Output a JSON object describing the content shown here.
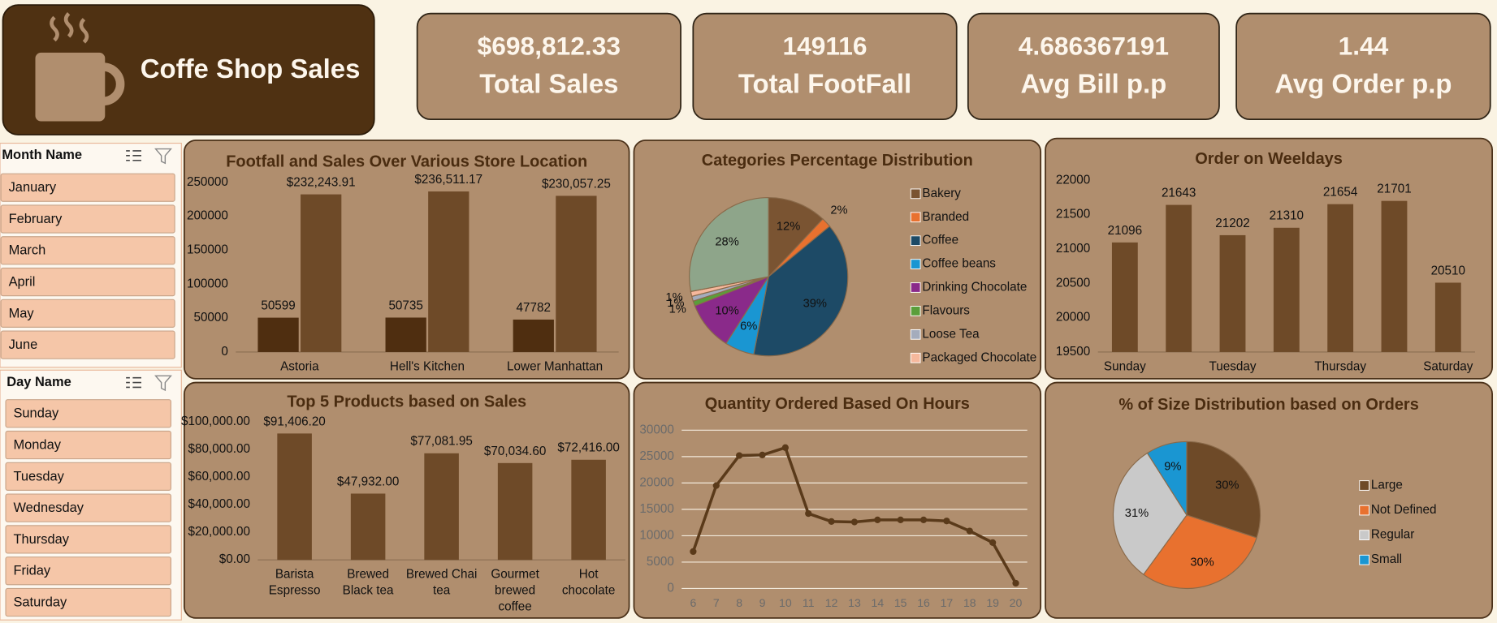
{
  "header": {
    "title": "Coffe Shop Sales"
  },
  "kpis": [
    {
      "value": "$698,812.33",
      "label": "Total Sales"
    },
    {
      "value": "149116",
      "label": "Total FootFall"
    },
    {
      "value": "4.686367191",
      "label": "Avg Bill p.p"
    },
    {
      "value": "1.44",
      "label": "Avg Order p.p"
    }
  ],
  "slicers": [
    {
      "title": "Month Name",
      "items": [
        "January",
        "February",
        "March",
        "April",
        "May",
        "June"
      ]
    },
    {
      "title": "Day Name",
      "items": [
        "Sunday",
        "Monday",
        "Tuesday",
        "Wednesday",
        "Thursday",
        "Friday",
        "Saturday"
      ]
    }
  ],
  "chart_data": [
    {
      "type": "bar",
      "title": "Footfall and Sales Over Various Store Location",
      "categories": [
        "Astoria",
        "Hell's Kitchen",
        "Lower Manhattan"
      ],
      "series": [
        {
          "color": "#4f2e10",
          "values": [
            50599,
            50735,
            47782
          ]
        },
        {
          "color": "#6e4a28",
          "values": [
            232243.91,
            236511.17,
            230057.25
          ],
          "value_labels": [
            "$232,243.91",
            "$236,511.17",
            "$230,057.25"
          ]
        }
      ],
      "ylim": [
        0,
        250000
      ],
      "yticks": [
        0,
        50000,
        100000,
        150000,
        200000,
        250000
      ]
    },
    {
      "type": "pie",
      "title": "Categories Percentage Distribution",
      "categories": [
        "Bakery",
        "Branded",
        "Coffee",
        "Coffee beans",
        "Drinking Chocolate",
        "Flavours",
        "Loose Tea",
        "Packaged Chocolate",
        null
      ],
      "values": [
        12,
        2,
        39,
        6,
        10,
        1,
        1,
        1,
        28
      ],
      "value_labels": [
        "12%",
        "2%",
        "39%",
        "6%",
        "10%",
        "1%",
        "1%",
        "1%",
        "28%"
      ],
      "colors": [
        "#7a5432",
        "#e8712f",
        "#1d4a66",
        "#1a96d2",
        "#8a2a8a",
        "#5a9e3a",
        "#a4acbc",
        "#f6b89c",
        "#8ea58a"
      ],
      "legend": "right"
    },
    {
      "type": "bar",
      "title": "Order on Weeldays",
      "categories": [
        "Sunday",
        null,
        "Tuesday",
        null,
        "Thursday",
        null,
        "Saturday"
      ],
      "values": [
        21096,
        21643,
        21202,
        21310,
        21654,
        21701,
        20510
      ],
      "color": "#6e4a28",
      "ylim": [
        19500,
        22000
      ],
      "yticks": [
        19500,
        20000,
        20500,
        21000,
        21500,
        22000
      ]
    },
    {
      "type": "bar",
      "title": "Top 5 Products based on Sales",
      "categories": [
        "Barista Espresso",
        "Brewed Black tea",
        "Brewed Chai tea",
        "Gourmet brewed coffee",
        "Hot chocolate"
      ],
      "values": [
        91406.2,
        47932.0,
        77081.95,
        70034.6,
        72416.0
      ],
      "value_labels": [
        "$91,406.20",
        "$47,932.00",
        "$77,081.95",
        "$70,034.60",
        "$72,416.00"
      ],
      "color": "#6e4a28",
      "ylim": [
        0,
        100000
      ],
      "yticks": [
        {
          "value": 0,
          "label": "$0.00"
        },
        {
          "value": 20000,
          "label": "$20,000.00"
        },
        {
          "value": 40000,
          "label": "$40,000.00"
        },
        {
          "value": 60000,
          "label": "$60,000.00"
        },
        {
          "value": 80000,
          "label": "$80,000.00"
        },
        {
          "value": 100000,
          "label": "$100,000.00"
        }
      ]
    },
    {
      "type": "line",
      "title": "Quantity Ordered Based On Hours",
      "x": [
        6,
        7,
        8,
        9,
        10,
        11,
        12,
        13,
        14,
        15,
        16,
        17,
        18,
        19,
        20
      ],
      "values": [
        7000,
        19500,
        25200,
        25300,
        26700,
        14200,
        12700,
        12600,
        13000,
        13000,
        13000,
        12800,
        10900,
        8700,
        1000
      ],
      "color": "#5a3a1a",
      "xlim": [
        5.5,
        20.5
      ],
      "xticks": [
        6,
        7,
        8,
        9,
        10,
        11,
        12,
        13,
        14,
        15,
        16,
        17,
        18,
        19,
        20
      ],
      "ylim": [
        0,
        30000
      ],
      "yticks": [
        0,
        5000,
        10000,
        15000,
        20000,
        25000,
        30000
      ],
      "grid": true
    },
    {
      "type": "pie",
      "title": "% of Size Distribution based on Orders",
      "categories": [
        "Large",
        "Not Defined",
        "Regular",
        "Small"
      ],
      "values": [
        30,
        30,
        31,
        9
      ],
      "value_labels": [
        "30%",
        "30%",
        "31%",
        "9%"
      ],
      "colors": [
        "#6e4a28",
        "#e8712f",
        "#c9c9c9",
        "#1a96d2"
      ],
      "legend": "right"
    }
  ]
}
